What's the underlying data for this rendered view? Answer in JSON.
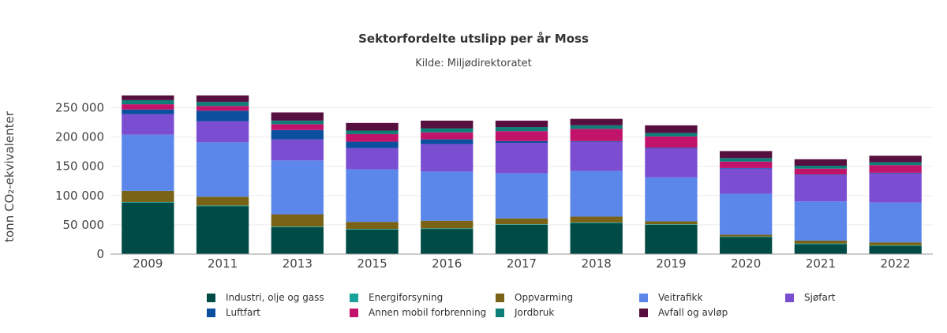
{
  "title": "Sektorfordelte utslipp per år Moss",
  "subtitle": "Kilde: Miljødirektoratet",
  "chart_data": {
    "type": "bar",
    "stacked": true,
    "ylabel": "tonn CO₂-ekvivalenter",
    "xlabel": "",
    "ylim": [
      0,
      275000
    ],
    "yticks": [
      0,
      50000,
      100000,
      150000,
      200000,
      250000
    ],
    "ytick_labels": [
      "0",
      "50 000",
      "100 000",
      "150 000",
      "200 000",
      "250 000"
    ],
    "grid": true,
    "legend_position": "bottom",
    "categories": [
      "2009",
      "2011",
      "2013",
      "2015",
      "2016",
      "2017",
      "2018",
      "2019",
      "2020",
      "2021",
      "2022"
    ],
    "series": [
      {
        "name": "Industri, olje og gass",
        "color": "#004b45",
        "values": [
          88000,
          82000,
          46000,
          42000,
          43000,
          50000,
          53000,
          50000,
          29000,
          17000,
          14000
        ]
      },
      {
        "name": "Energiforsyning",
        "color": "#1aa39a",
        "values": [
          1000,
          1000,
          1000,
          1000,
          1000,
          1000,
          1000,
          1000,
          1000,
          1000,
          1000
        ]
      },
      {
        "name": "Oppvarming",
        "color": "#7a6316",
        "values": [
          19000,
          15000,
          21000,
          12000,
          13000,
          10000,
          10000,
          5000,
          3000,
          5000,
          5000
        ]
      },
      {
        "name": "Veitrafikk",
        "color": "#5b87eb",
        "values": [
          96000,
          93000,
          92000,
          90000,
          84000,
          77000,
          78000,
          75000,
          70000,
          67000,
          68000
        ]
      },
      {
        "name": "Sjøfart",
        "color": "#7b4dd1",
        "values": [
          35000,
          36000,
          36000,
          36000,
          47000,
          52000,
          50000,
          50000,
          43000,
          45000,
          50000
        ]
      },
      {
        "name": "Luftfart",
        "color": "#0b4f9e",
        "values": [
          8000,
          18000,
          16000,
          11000,
          8000,
          3000,
          1000,
          1000,
          1000,
          1000,
          1000
        ]
      },
      {
        "name": "Annen mobil forbrenning",
        "color": "#c2136b",
        "values": [
          9000,
          8000,
          10000,
          13000,
          12000,
          17000,
          21000,
          19000,
          11000,
          10000,
          13000
        ]
      },
      {
        "name": "Jordbruk",
        "color": "#0f7d78",
        "values": [
          7000,
          7000,
          6000,
          6000,
          7000,
          7000,
          6000,
          6000,
          6000,
          5000,
          5000
        ]
      },
      {
        "name": "Avfall og avløp",
        "color": "#560f3e",
        "values": [
          8000,
          11000,
          14000,
          13000,
          13000,
          11000,
          11000,
          13000,
          12000,
          11000,
          11000
        ]
      }
    ]
  }
}
